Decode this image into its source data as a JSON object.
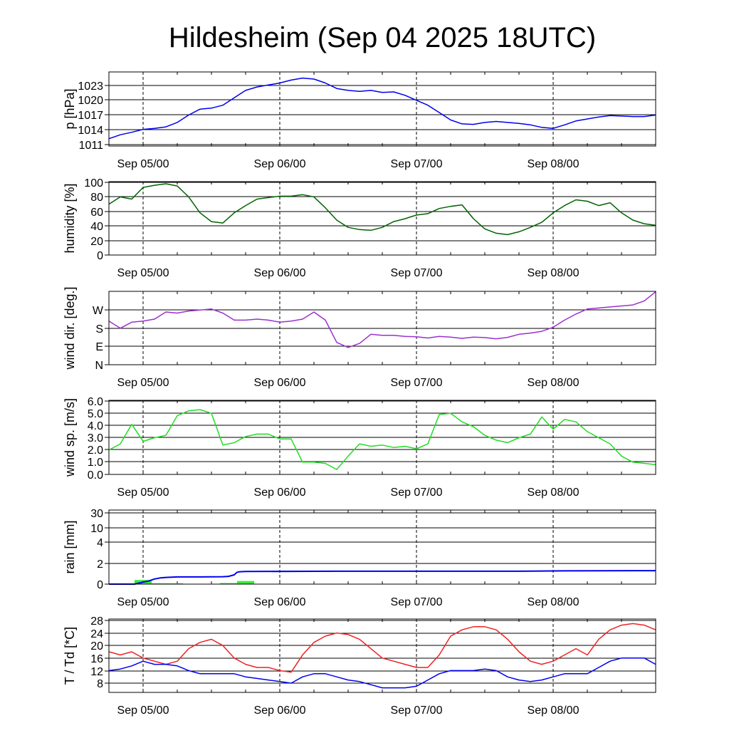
{
  "title": "Hildesheim (Sep 04 2025 18UTC)",
  "x_ticks": [
    "Sep 05/00",
    "Sep 06/00",
    "Sep 07/00",
    "Sep 08/00"
  ],
  "colors": {
    "pressure": "#0000ee",
    "humidity": "#006400",
    "wind_dir": "#9b30d0",
    "wind_speed": "#22dd22",
    "rain_total": "#0000ee",
    "rain_bar": "#33ee33",
    "temperature": "#ee2222",
    "dewpoint": "#0000ee"
  },
  "chart_data": [
    {
      "type": "line",
      "ylabel": "p [hPa]",
      "yticks": [
        "1023",
        "1020",
        "1017",
        "1014",
        "1011"
      ],
      "ylim": [
        1011,
        1025
      ],
      "x_hours": [
        0,
        2,
        4,
        6,
        8,
        10,
        12,
        14,
        16,
        18,
        20,
        22,
        24,
        26,
        28,
        30,
        32,
        34,
        36,
        38,
        40,
        42,
        44,
        46,
        48,
        50,
        52,
        54,
        56,
        58,
        60,
        62,
        64,
        66,
        68,
        70,
        72,
        74,
        76,
        78,
        80,
        82,
        84,
        86,
        88,
        90,
        92,
        94,
        96
      ],
      "series": [
        {
          "values": [
            1012.2,
            1013,
            1013.5,
            1014.1,
            1014.3,
            1014.6,
            1015.5,
            1017,
            1018.2,
            1018.4,
            1019,
            1020.5,
            1022,
            1022.7,
            1023.1,
            1023.5,
            1024.1,
            1024.5,
            1024.3,
            1023.5,
            1022.4,
            1022,
            1021.8,
            1022,
            1021.6,
            1021.7,
            1021,
            1020,
            1019,
            1017.5,
            1016,
            1015.2,
            1015.1,
            1015.5,
            1015.7,
            1015.5,
            1015.3,
            1015,
            1014.5,
            1014.3,
            1015,
            1015.8,
            1016.2,
            1016.6,
            1016.9,
            1016.8,
            1016.7,
            1016.7,
            1017
          ]
        }
      ]
    },
    {
      "type": "line",
      "ylabel": "humidity [%]",
      "yticks": [
        "100",
        "80",
        "60",
        "40",
        "20",
        "0"
      ],
      "ylim": [
        0,
        100
      ],
      "x_hours": [
        0,
        2,
        4,
        6,
        8,
        10,
        12,
        14,
        16,
        18,
        20,
        22,
        24,
        26,
        28,
        30,
        32,
        34,
        36,
        38,
        40,
        42,
        44,
        46,
        48,
        50,
        52,
        54,
        56,
        58,
        60,
        62,
        64,
        66,
        68,
        70,
        72,
        74,
        76,
        78,
        80,
        82,
        84,
        86,
        88,
        90,
        92,
        94,
        96
      ],
      "series": [
        {
          "values": [
            70,
            80,
            77,
            93,
            96,
            98,
            95,
            80,
            58,
            46,
            44,
            58,
            68,
            77,
            79,
            81,
            81,
            83,
            80,
            65,
            48,
            38,
            35,
            34,
            38,
            46,
            50,
            55,
            57,
            64,
            67,
            69,
            50,
            36,
            30,
            28,
            32,
            38,
            45,
            58,
            68,
            76,
            74,
            68,
            72,
            58,
            48,
            43,
            41
          ]
        }
      ]
    },
    {
      "type": "line",
      "ylabel": "wind dir. [deg.]",
      "yticks": [
        "W",
        "S",
        "E",
        "N"
      ],
      "ylim": [
        0,
        360
      ],
      "x_hours": [
        0,
        2,
        4,
        6,
        8,
        10,
        12,
        14,
        16,
        18,
        20,
        22,
        24,
        26,
        28,
        30,
        32,
        34,
        36,
        38,
        40,
        42,
        44,
        46,
        48,
        50,
        52,
        54,
        56,
        58,
        60,
        62,
        64,
        66,
        68,
        70,
        72,
        74,
        76,
        78,
        80,
        82,
        84,
        86,
        88,
        90,
        92,
        94,
        96
      ],
      "series": [
        {
          "values": [
            215,
            180,
            210,
            215,
            225,
            260,
            255,
            265,
            270,
            275,
            255,
            220,
            220,
            225,
            220,
            210,
            215,
            225,
            260,
            220,
            110,
            85,
            105,
            150,
            145,
            145,
            140,
            138,
            132,
            140,
            136,
            130,
            136,
            134,
            128,
            135,
            150,
            156,
            165,
            185,
            220,
            250,
            275,
            280,
            285,
            290,
            295,
            315,
            360
          ]
        }
      ]
    },
    {
      "type": "line",
      "ylabel": "wind sp. [m/s]",
      "yticks": [
        "6.0",
        "5.0",
        "4.0",
        "3.0",
        "2.0",
        "1.0",
        "0.0"
      ],
      "ylim": [
        0,
        6
      ],
      "x_hours": [
        0,
        2,
        4,
        6,
        8,
        10,
        12,
        14,
        16,
        18,
        20,
        22,
        24,
        26,
        28,
        30,
        32,
        34,
        36,
        38,
        40,
        42,
        44,
        46,
        48,
        50,
        52,
        54,
        56,
        58,
        60,
        62,
        64,
        66,
        68,
        70,
        72,
        74,
        76,
        78,
        80,
        82,
        84,
        86,
        88,
        90,
        92,
        94,
        96
      ],
      "series": [
        {
          "values": [
            2.0,
            2.5,
            4.1,
            2.7,
            3.0,
            3.2,
            4.8,
            5.2,
            5.3,
            5.0,
            2.4,
            2.6,
            3.1,
            3.3,
            3.3,
            2.9,
            2.9,
            1.0,
            1.0,
            0.9,
            0.4,
            1.5,
            2.5,
            2.3,
            2.4,
            2.2,
            2.3,
            2.1,
            2.5,
            4.9,
            5.0,
            4.3,
            3.9,
            3.2,
            2.8,
            2.6,
            3.0,
            3.3,
            4.7,
            3.7,
            4.5,
            4.3,
            3.5,
            3.0,
            2.5,
            1.5,
            1.0,
            0.9,
            0.8
          ]
        }
      ]
    },
    {
      "type": "bar",
      "ylabel": "rain [mm]",
      "yticks": [
        "30",
        "10",
        "4",
        "2",
        "0"
      ],
      "rain_bars": [
        {
          "start_hour": 4.5,
          "end_hour": 7.5,
          "value": 0.4
        },
        {
          "start_hour": 7.5,
          "end_hour": 13,
          "value": 0.08
        },
        {
          "start_hour": 19.5,
          "end_hour": 22.5,
          "value": 0.1
        },
        {
          "start_hour": 22.5,
          "end_hour": 25.5,
          "value": 0.3
        }
      ],
      "series": [
        {
          "x_hours": [
            0,
            4.5,
            6,
            7,
            8,
            9,
            10,
            12,
            16,
            20,
            21,
            22,
            22.5,
            23,
            24,
            40,
            60,
            72,
            80,
            96
          ],
          "values": [
            0,
            0,
            0.2,
            0.3,
            0.5,
            0.6,
            0.65,
            0.7,
            0.7,
            0.72,
            0.75,
            0.9,
            1.15,
            1.2,
            1.22,
            1.25,
            1.25,
            1.25,
            1.28,
            1.3
          ]
        }
      ]
    },
    {
      "type": "line",
      "ylabel": "T / Td [*C]",
      "yticks": [
        "28",
        "24",
        "20",
        "16",
        "12",
        "8"
      ],
      "ylim": [
        5,
        29
      ],
      "x_hours": [
        0,
        2,
        4,
        6,
        8,
        10,
        12,
        14,
        16,
        18,
        20,
        22,
        24,
        26,
        28,
        30,
        32,
        34,
        36,
        38,
        40,
        42,
        44,
        46,
        48,
        50,
        52,
        54,
        56,
        58,
        60,
        62,
        64,
        66,
        68,
        70,
        72,
        74,
        76,
        78,
        80,
        82,
        84,
        86,
        88,
        90,
        92,
        94,
        96
      ],
      "series": [
        {
          "values": [
            18,
            17,
            18,
            16,
            15,
            14,
            15,
            19,
            21,
            22,
            20,
            16,
            14,
            13,
            13,
            12,
            11.5,
            17,
            21,
            23,
            24,
            23.5,
            22,
            19,
            16,
            15,
            14,
            13,
            13,
            17,
            23,
            25,
            26,
            26,
            25,
            22,
            18,
            15,
            14,
            15,
            17,
            19,
            17,
            22,
            25,
            26.5,
            27,
            26.5,
            25
          ]
        },
        {
          "values": [
            12,
            12.5,
            13.5,
            15,
            14,
            14,
            13.5,
            12,
            11,
            11,
            11,
            11,
            10,
            9.5,
            9,
            8.5,
            8,
            10,
            11,
            11,
            10,
            9,
            8.5,
            7.5,
            6.5,
            6.5,
            6.5,
            7,
            9,
            11,
            12,
            12,
            12,
            12.5,
            12,
            10,
            9,
            8.5,
            9,
            10,
            11,
            11,
            11,
            13,
            15,
            16,
            16,
            16,
            14
          ]
        }
      ]
    }
  ]
}
